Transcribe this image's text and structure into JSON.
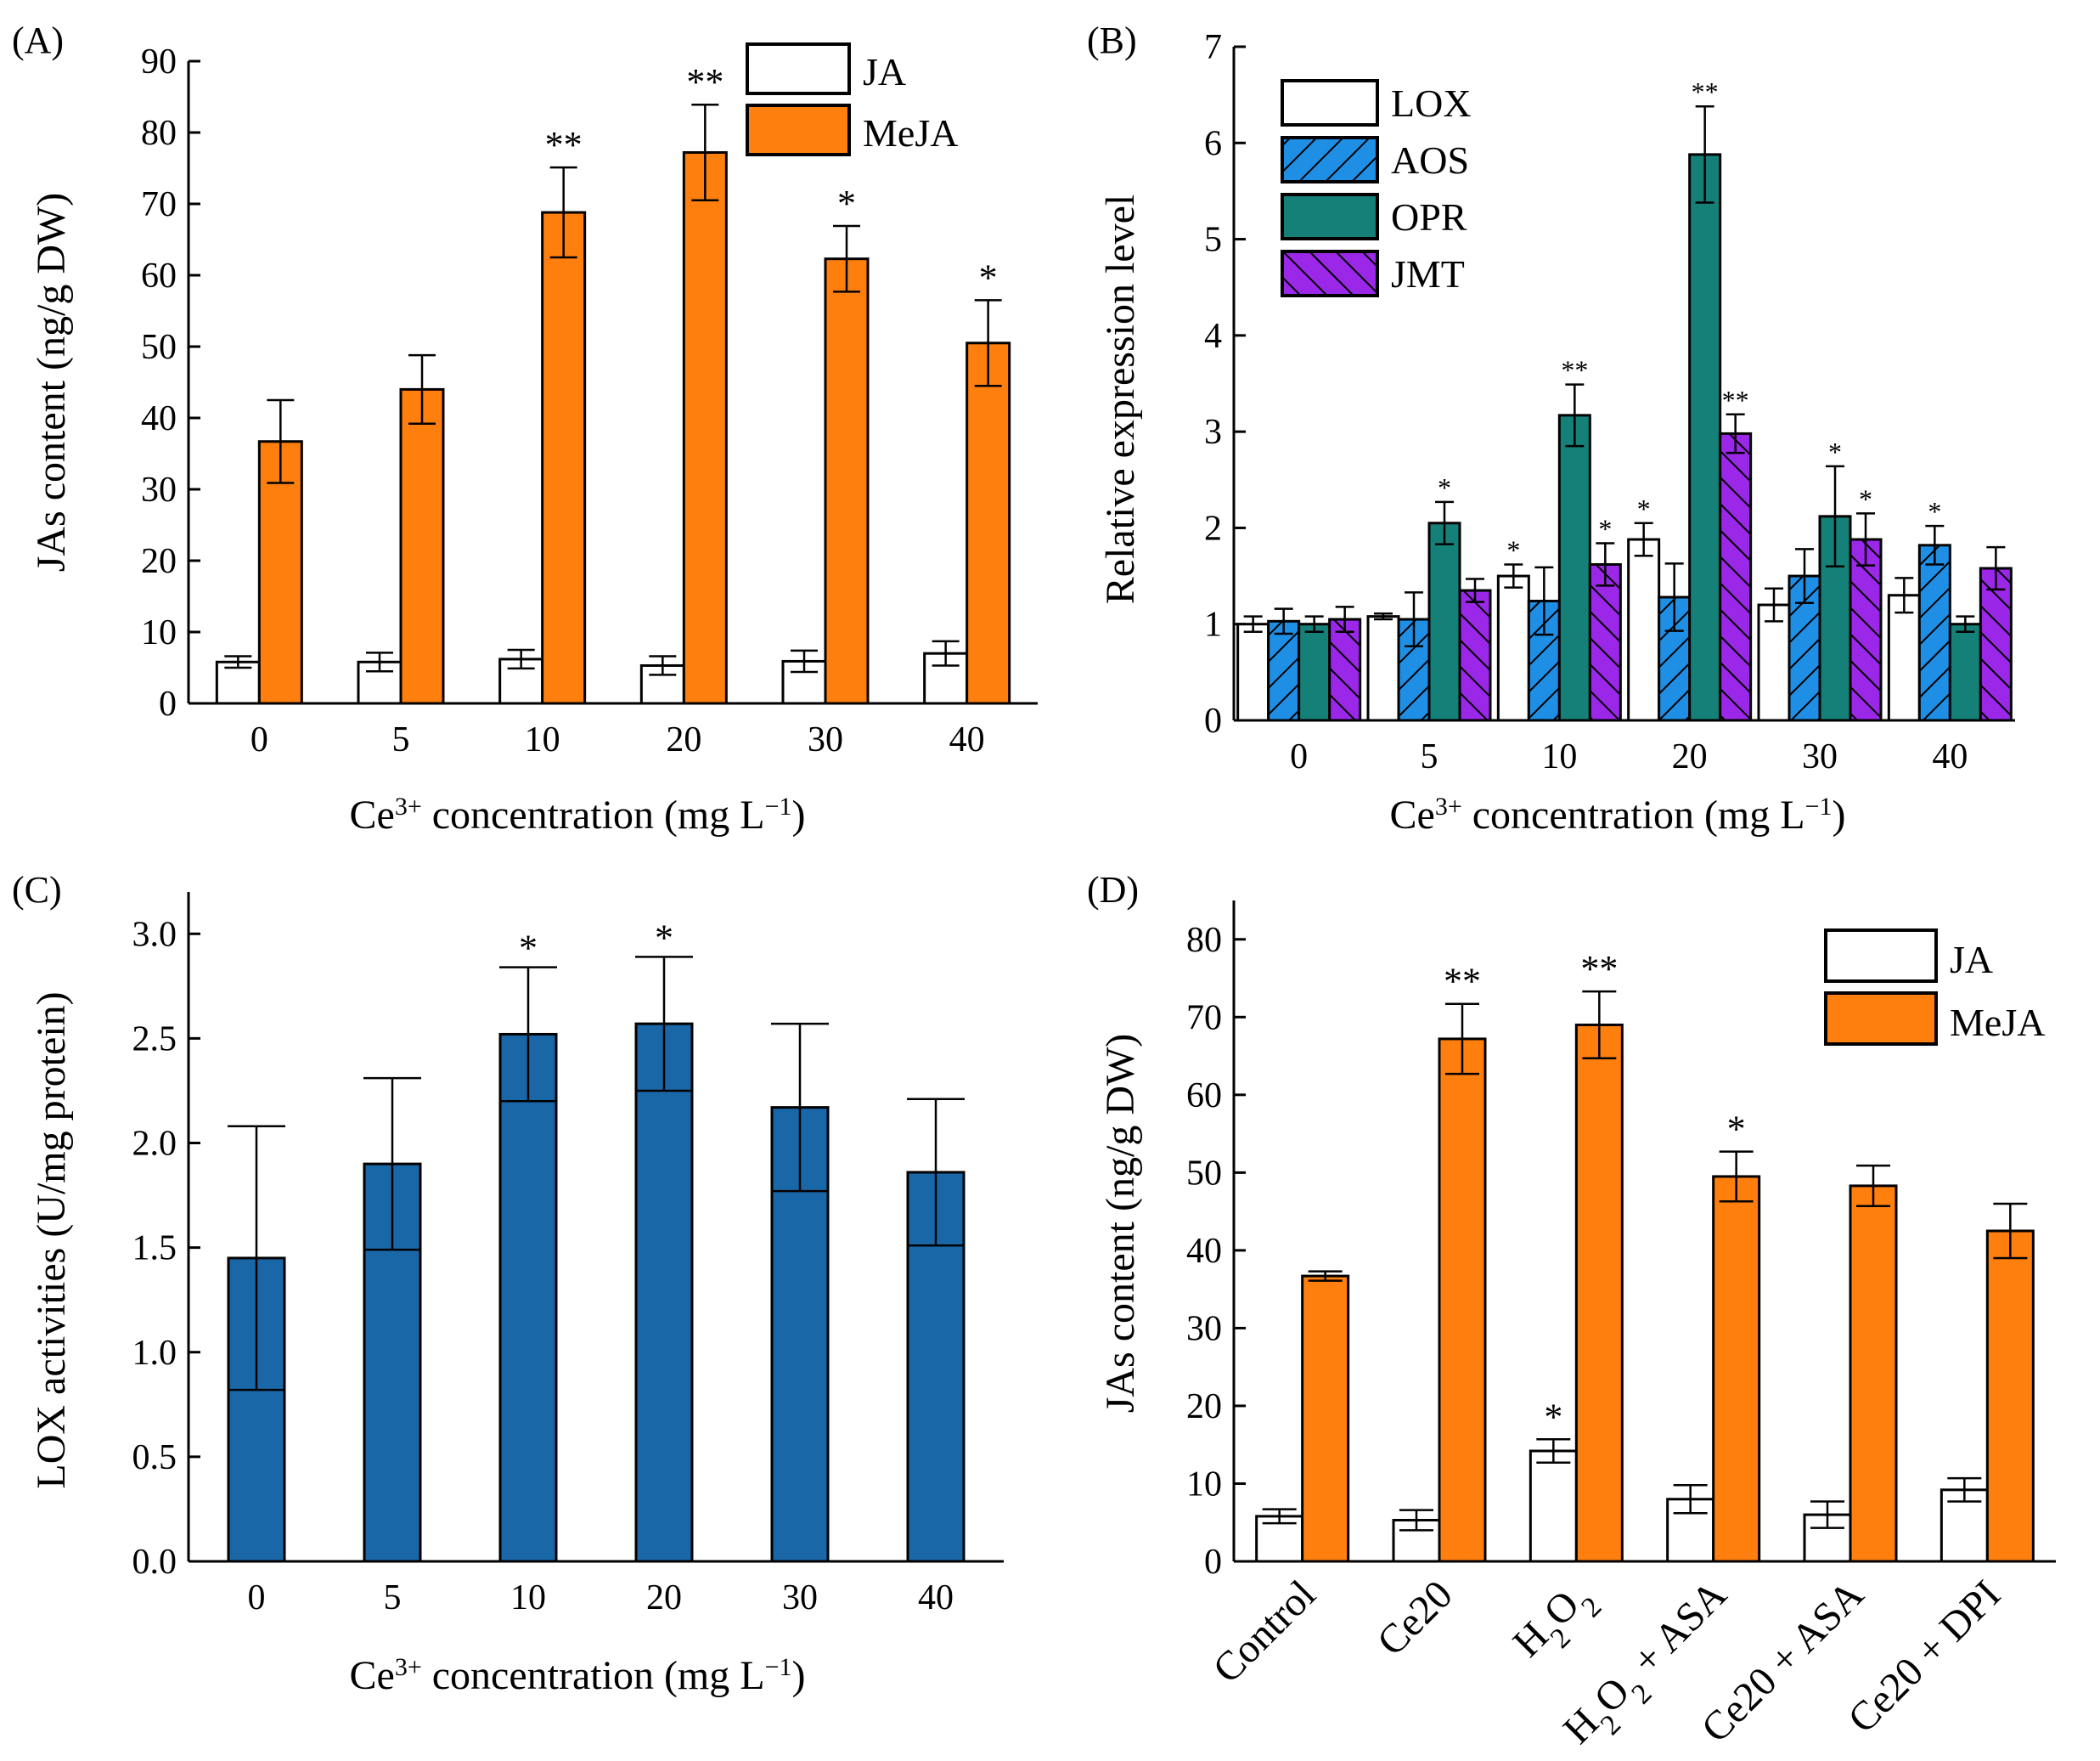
{
  "colors": {
    "ja": "#ffffff",
    "meja": "#ff7f0e",
    "lox": "#ffffff",
    "aos": "#1f8fe6",
    "opr": "#158077",
    "jmt": "#9b27e8",
    "lox_activity": "#1a67a8",
    "edge": "#000000"
  },
  "chart_data": [
    {
      "panel": "(A)",
      "type": "bar",
      "categories": [
        "0",
        "5",
        "10",
        "20",
        "30",
        "40"
      ],
      "xlabel_main": "Ce",
      "xlabel_sup": "3+",
      "xlabel_rest": " concentration (mg L",
      "xlabel_unit_sup": "−1",
      "xlabel_close": ")",
      "ylabel": "JAs content (ng/g DW)",
      "ylim": [
        0,
        90
      ],
      "yticks": [
        "0",
        "10",
        "20",
        "30",
        "40",
        "50",
        "60",
        "70",
        "80",
        "90"
      ],
      "series": [
        {
          "name": "JA",
          "key": "ja",
          "values": [
            5.8,
            5.8,
            6.2,
            5.3,
            5.9,
            7.0
          ],
          "errors": [
            0.8,
            1.3,
            1.3,
            1.3,
            1.5,
            1.7
          ],
          "sig": [
            "",
            "",
            "",
            "",
            "",
            ""
          ]
        },
        {
          "name": "MeJA",
          "key": "meja",
          "values": [
            36.7,
            44.0,
            68.8,
            77.2,
            62.3,
            50.5
          ],
          "errors": [
            5.8,
            4.8,
            6.3,
            6.7,
            4.6,
            6.0
          ],
          "sig": [
            "",
            "",
            "**",
            "**",
            "*",
            "*"
          ]
        }
      ],
      "legend": [
        "JA",
        "MeJA"
      ]
    },
    {
      "panel": "(B)",
      "type": "bar",
      "categories": [
        "0",
        "5",
        "10",
        "20",
        "30",
        "40"
      ],
      "xlabel_main": "Ce",
      "xlabel_sup": "3+",
      "xlabel_rest": " concentration (mg L",
      "xlabel_unit_sup": "−1",
      "xlabel_close": ")",
      "ylabel": "Relative expression level",
      "ylim": [
        0,
        7
      ],
      "yticks": [
        "0",
        "1",
        "2",
        "3",
        "4",
        "5",
        "6",
        "7"
      ],
      "series": [
        {
          "name": "LOX",
          "key": "lox",
          "hatch": false,
          "values": [
            1.0,
            1.08,
            1.5,
            1.88,
            1.2,
            1.3
          ],
          "errors": [
            0.08,
            0.03,
            0.12,
            0.17,
            0.17,
            0.18
          ],
          "sig": [
            "",
            "",
            "*",
            "*",
            "",
            ""
          ]
        },
        {
          "name": "AOS",
          "key": "aos",
          "hatch": true,
          "values": [
            1.03,
            1.05,
            1.24,
            1.28,
            1.5,
            1.82
          ],
          "errors": [
            0.13,
            0.28,
            0.35,
            0.35,
            0.28,
            0.2
          ],
          "sig": [
            "",
            "",
            "",
            "",
            "",
            "*"
          ]
        },
        {
          "name": "OPR",
          "key": "opr",
          "hatch": false,
          "values": [
            1.0,
            2.05,
            3.17,
            5.88,
            2.12,
            1.0
          ],
          "errors": [
            0.08,
            0.22,
            0.32,
            0.5,
            0.52,
            0.08
          ],
          "sig": [
            "",
            "*",
            "**",
            "**",
            "*",
            ""
          ]
        },
        {
          "name": "JMT",
          "key": "jmt",
          "hatch": true,
          "values": [
            1.05,
            1.35,
            1.62,
            2.98,
            1.88,
            1.58
          ],
          "errors": [
            0.13,
            0.12,
            0.22,
            0.2,
            0.27,
            0.22
          ],
          "sig": [
            "",
            "",
            "*",
            "**",
            "*",
            ""
          ]
        }
      ],
      "legend": [
        "LOX",
        "AOS",
        "OPR",
        "JMT"
      ]
    },
    {
      "panel": "(C)",
      "type": "bar",
      "categories": [
        "0",
        "5",
        "10",
        "20",
        "30",
        "40"
      ],
      "xlabel_main": "Ce",
      "xlabel_sup": "3+",
      "xlabel_rest": " concentration (mg L",
      "xlabel_unit_sup": "−1",
      "xlabel_close": ")",
      "ylabel": "LOX activities (U/mg protein)",
      "ylim": [
        0,
        3.2
      ],
      "yticks": [
        "0.0",
        "0.5",
        "1.0",
        "1.5",
        "2.0",
        "2.5",
        "3.0"
      ],
      "ytick_values": [
        0,
        0.5,
        1.0,
        1.5,
        2.0,
        2.5,
        3.0
      ],
      "series": [
        {
          "name": "LOX activity",
          "key": "lox_activity",
          "values": [
            1.45,
            1.9,
            2.52,
            2.57,
            2.17,
            1.86
          ],
          "errors": [
            0.63,
            0.41,
            0.32,
            0.32,
            0.4,
            0.35
          ],
          "sig": [
            "",
            "",
            "*",
            "*",
            "",
            ""
          ]
        }
      ]
    },
    {
      "panel": "(D)",
      "type": "bar",
      "categories": [
        "Control",
        "Ce20",
        "H2O2",
        "H2O2 + ASA",
        "Ce20 + ASA",
        "Ce20 + DPI"
      ],
      "ylabel": "JAs content (ng/g DW)",
      "ylim": [
        0,
        85
      ],
      "yticks": [
        "0",
        "10",
        "20",
        "30",
        "40",
        "50",
        "60",
        "70",
        "80"
      ],
      "series": [
        {
          "name": "JA",
          "key": "ja",
          "values": [
            5.8,
            5.3,
            14.2,
            8.0,
            6.0,
            9.2
          ],
          "errors": [
            0.9,
            1.3,
            1.5,
            1.8,
            1.7,
            1.5
          ],
          "sig": [
            "",
            "",
            "*",
            "",
            "",
            ""
          ]
        },
        {
          "name": "MeJA",
          "key": "meja",
          "values": [
            36.7,
            67.2,
            69.0,
            49.5,
            48.3,
            42.5
          ],
          "errors": [
            0.6,
            4.5,
            4.3,
            3.2,
            2.6,
            3.5
          ],
          "sig": [
            "",
            "**",
            "**",
            "*",
            "",
            ""
          ]
        }
      ],
      "legend": [
        "JA",
        "MeJA"
      ]
    }
  ]
}
